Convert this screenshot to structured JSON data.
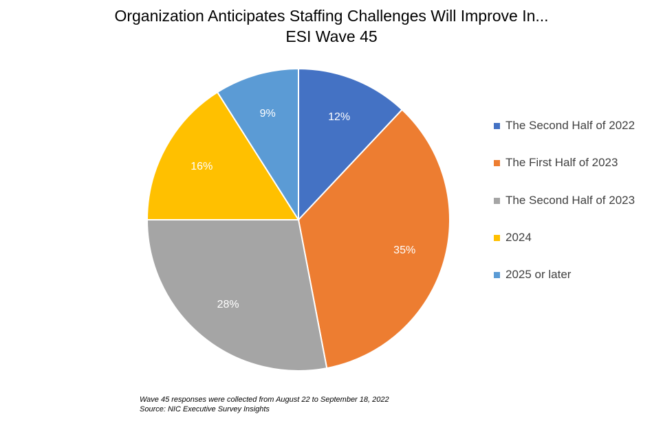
{
  "chart_data": {
    "type": "pie",
    "title": "Organization Anticipates Staffing Challenges Will Improve In...",
    "subtitle": "ESI Wave 45",
    "legend_position": "right",
    "slices": [
      {
        "label": "The Second Half of 2022",
        "value": 12,
        "display": "12%",
        "color": "#4472C4"
      },
      {
        "label": "The First Half of 2023",
        "value": 35,
        "display": "35%",
        "color": "#ED7D31"
      },
      {
        "label": "The Second Half of 2023",
        "value": 28,
        "display": "28%",
        "color": "#A5A5A5"
      },
      {
        "label": "2024",
        "value": 16,
        "display": "16%",
        "color": "#FFC000"
      },
      {
        "label": "2025 or later",
        "value": 9,
        "display": "9%",
        "color": "#5B9BD5"
      }
    ],
    "notes": [
      "Wave 45 responses were collected from August 22 to September 18, 2022",
      "Source: NIC Executive Survey Insights"
    ]
  }
}
